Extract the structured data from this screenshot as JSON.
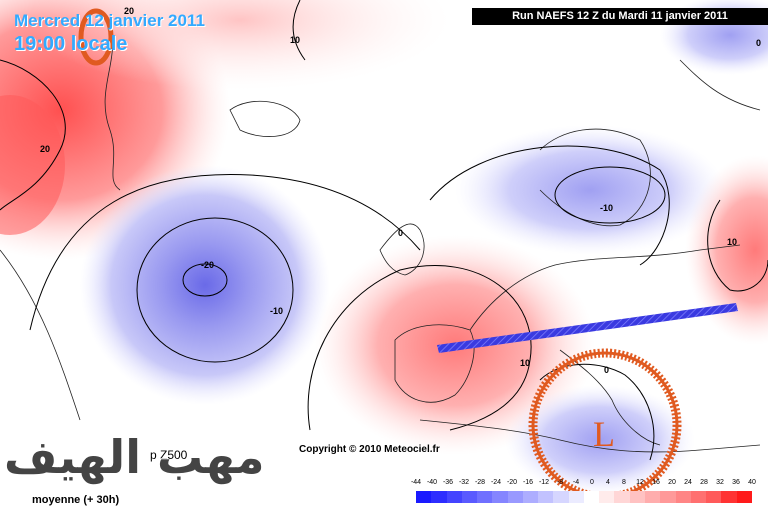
{
  "header": {
    "date_line_1": "Mercred 12 janvier 2011",
    "date_line_2": "19:00 locale",
    "run_info": "Run NAEFS 12 Z du Mardi 11 janvier 2011"
  },
  "footer": {
    "copyright": "Copyright © 2010 Meteociel.fr",
    "model_label": "p Z500",
    "average_label": "moyenne (+ 30h)",
    "watermark": "مهب الهيف"
  },
  "contour_labels": [
    {
      "text": "20"
    },
    {
      "text": "10"
    },
    {
      "text": "20"
    },
    {
      "text": "-20"
    },
    {
      "text": "-10"
    },
    {
      "text": "0"
    },
    {
      "text": "-10"
    },
    {
      "text": "10"
    },
    {
      "text": "10"
    },
    {
      "text": "0"
    },
    {
      "text": "0"
    }
  ],
  "annotations": {
    "low_marker": "L"
  },
  "color_scale": {
    "labels": [
      "-44",
      "-40",
      "-36",
      "-32",
      "-28",
      "-24",
      "-20",
      "-16",
      "-12",
      "-8",
      "-4",
      "0",
      "4",
      "8",
      "12",
      "16",
      "20",
      "24",
      "28",
      "32",
      "36",
      "40"
    ],
    "colors": [
      "#1a1aff",
      "#2d2dff",
      "#4444ff",
      "#5a5aff",
      "#7070ff",
      "#8585ff",
      "#9999ff",
      "#adadff",
      "#c2c2ff",
      "#d6d6ff",
      "#ebebff",
      "#ffffff",
      "#ffebeb",
      "#ffd6d6",
      "#ffc2c2",
      "#ffadad",
      "#ff9999",
      "#ff8585",
      "#ff7070",
      "#ff5a5a",
      "#ff3333",
      "#ff1a1a"
    ]
  },
  "colors": {
    "date_text": "#33aaff",
    "annotation_orange": "#e05a20",
    "front_blue": "#2a2ad8"
  }
}
